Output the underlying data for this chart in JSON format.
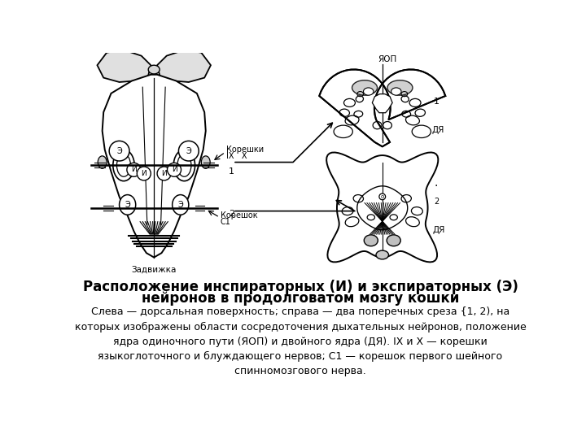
{
  "title_line1": "Расположение инспираторных (И) и экспираторных (Э)",
  "title_line2": "нейронов в продолговатом мозгу кошки",
  "subtitle": "Слева — дорсальная поверхность; справа — два поперечных среза {1, 2), на\nкоторых изображены области сосредоточения дыхательных нейронов, положение\nядра одиночного пути (ЯОП) и двойного ядра (ДЯ). IX и X — корешки\nязыкоглоточного и блуждающего нервов; С1 — корешок первого шейного\nспинномозгового нерва.",
  "bg_color": "#ffffff",
  "text_color": "#000000",
  "title_fontsize": 12,
  "subtitle_fontsize": 9
}
